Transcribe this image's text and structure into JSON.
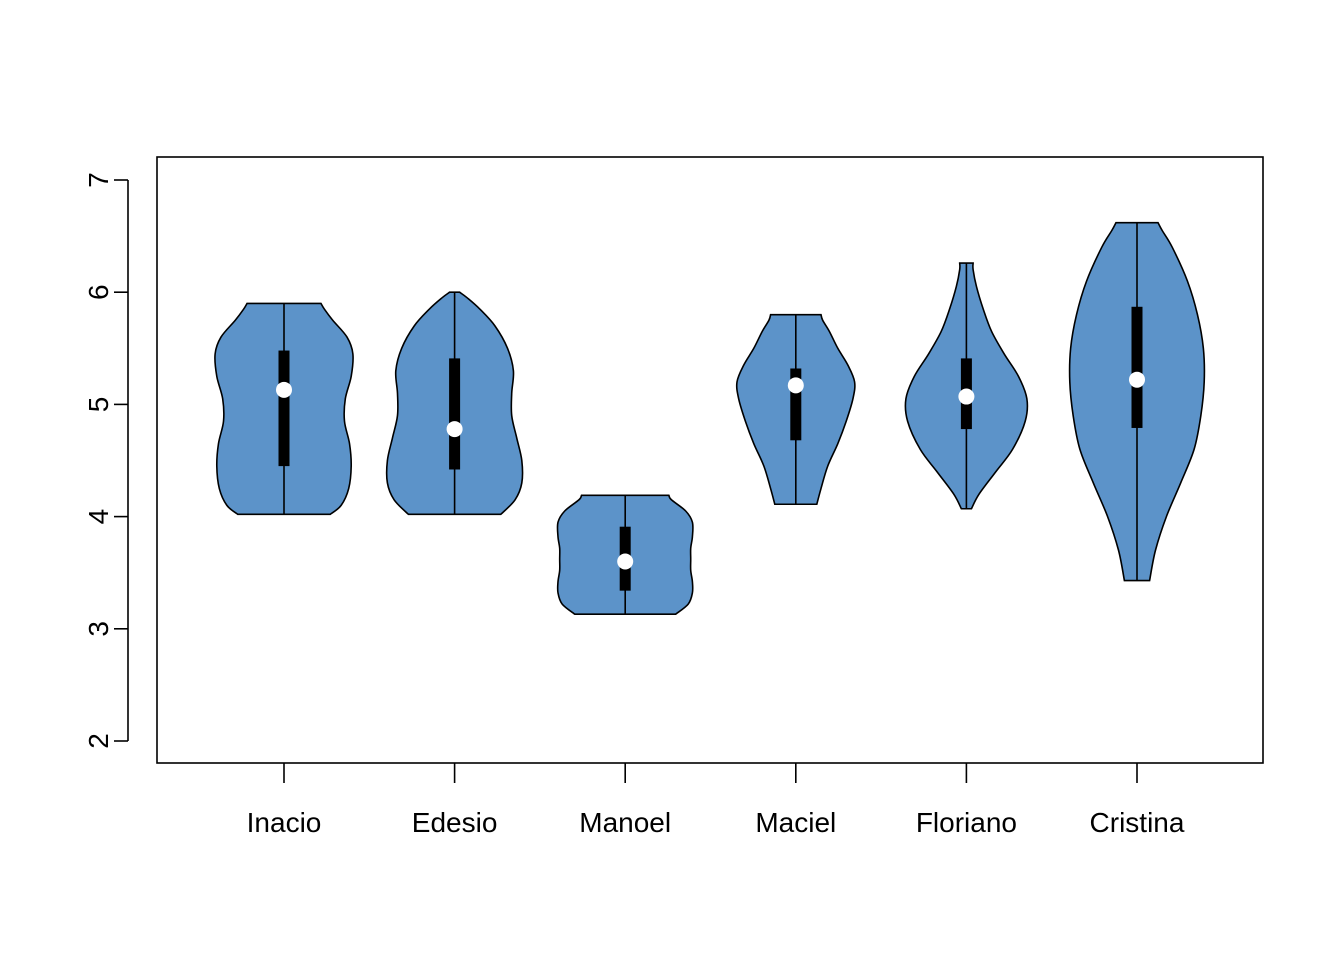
{
  "chart_data": {
    "type": "violin",
    "title": "",
    "xlabel": "",
    "ylabel": "",
    "ylim": [
      1.8,
      7.2
    ],
    "yticks": [
      2,
      3,
      4,
      5,
      6,
      7
    ],
    "grid": false,
    "fill_color": "#5c93c9",
    "categories": [
      "Inacio",
      "Edesio",
      "Manoel",
      "Maciel",
      "Floriano",
      "Cristina"
    ],
    "series": [
      {
        "category": "Inacio",
        "min": 4.02,
        "max": 5.9,
        "q1": 4.45,
        "q3": 5.48,
        "median": 5.13,
        "density": [
          [
            4.02,
            0.55
          ],
          [
            4.1,
            0.68
          ],
          [
            4.25,
            0.77
          ],
          [
            4.45,
            0.8
          ],
          [
            4.65,
            0.78
          ],
          [
            4.85,
            0.72
          ],
          [
            5.05,
            0.73
          ],
          [
            5.25,
            0.8
          ],
          [
            5.45,
            0.82
          ],
          [
            5.6,
            0.75
          ],
          [
            5.75,
            0.58
          ],
          [
            5.85,
            0.48
          ],
          [
            5.9,
            0.44
          ]
        ]
      },
      {
        "category": "Edesio",
        "min": 4.02,
        "max": 6.0,
        "q1": 4.42,
        "q3": 5.41,
        "median": 4.78,
        "density": [
          [
            4.02,
            0.55
          ],
          [
            4.15,
            0.72
          ],
          [
            4.3,
            0.8
          ],
          [
            4.5,
            0.8
          ],
          [
            4.7,
            0.74
          ],
          [
            4.9,
            0.68
          ],
          [
            5.1,
            0.68
          ],
          [
            5.3,
            0.7
          ],
          [
            5.5,
            0.63
          ],
          [
            5.7,
            0.48
          ],
          [
            5.85,
            0.3
          ],
          [
            5.95,
            0.15
          ],
          [
            6.0,
            0.06
          ]
        ]
      },
      {
        "category": "Manoel",
        "min": 3.13,
        "max": 4.19,
        "q1": 3.34,
        "q3": 3.91,
        "median": 3.6,
        "density": [
          [
            3.13,
            0.6
          ],
          [
            3.22,
            0.75
          ],
          [
            3.32,
            0.8
          ],
          [
            3.42,
            0.8
          ],
          [
            3.52,
            0.78
          ],
          [
            3.62,
            0.78
          ],
          [
            3.72,
            0.78
          ],
          [
            3.82,
            0.8
          ],
          [
            3.95,
            0.8
          ],
          [
            4.05,
            0.72
          ],
          [
            4.15,
            0.55
          ],
          [
            4.19,
            0.52
          ]
        ]
      },
      {
        "category": "Maciel",
        "min": 4.11,
        "max": 5.8,
        "q1": 4.68,
        "q3": 5.32,
        "median": 5.17,
        "density": [
          [
            4.11,
            0.25
          ],
          [
            4.25,
            0.3
          ],
          [
            4.45,
            0.38
          ],
          [
            4.65,
            0.5
          ],
          [
            4.85,
            0.6
          ],
          [
            5.05,
            0.68
          ],
          [
            5.2,
            0.7
          ],
          [
            5.35,
            0.62
          ],
          [
            5.5,
            0.5
          ],
          [
            5.65,
            0.4
          ],
          [
            5.75,
            0.32
          ],
          [
            5.8,
            0.3
          ]
        ]
      },
      {
        "category": "Floriano",
        "min": 4.07,
        "max": 6.26,
        "q1": 4.78,
        "q3": 5.41,
        "median": 5.07,
        "density": [
          [
            4.07,
            0.06
          ],
          [
            4.2,
            0.15
          ],
          [
            4.4,
            0.35
          ],
          [
            4.6,
            0.55
          ],
          [
            4.85,
            0.7
          ],
          [
            5.05,
            0.72
          ],
          [
            5.25,
            0.62
          ],
          [
            5.45,
            0.45
          ],
          [
            5.65,
            0.3
          ],
          [
            5.85,
            0.2
          ],
          [
            6.05,
            0.12
          ],
          [
            6.2,
            0.08
          ],
          [
            6.26,
            0.08
          ]
        ]
      },
      {
        "category": "Cristina",
        "min": 3.43,
        "max": 6.62,
        "q1": 4.79,
        "q3": 5.87,
        "median": 5.22,
        "density": [
          [
            3.43,
            0.15
          ],
          [
            3.7,
            0.22
          ],
          [
            4.0,
            0.35
          ],
          [
            4.3,
            0.52
          ],
          [
            4.6,
            0.68
          ],
          [
            4.9,
            0.76
          ],
          [
            5.2,
            0.8
          ],
          [
            5.5,
            0.79
          ],
          [
            5.8,
            0.72
          ],
          [
            6.1,
            0.6
          ],
          [
            6.4,
            0.42
          ],
          [
            6.55,
            0.3
          ],
          [
            6.62,
            0.25
          ]
        ]
      }
    ]
  }
}
